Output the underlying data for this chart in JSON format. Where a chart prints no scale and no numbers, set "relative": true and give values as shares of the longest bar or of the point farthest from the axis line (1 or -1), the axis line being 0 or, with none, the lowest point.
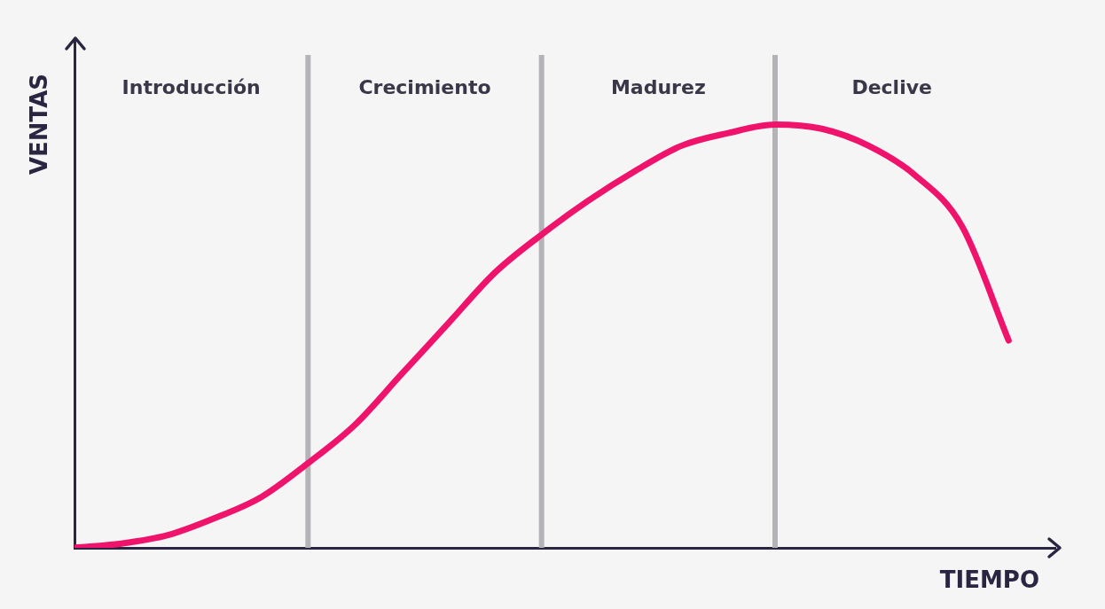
{
  "chart_data": {
    "type": "line",
    "xlabel": "TIEMPO",
    "ylabel": "VENTAS",
    "relative": true,
    "tick_labels": false,
    "grid": "x",
    "legend": false,
    "marker": "none",
    "line_style": "solid",
    "annotations": [
      "Introducción",
      "Crecimiento",
      "Madurez",
      "Declive"
    ],
    "categories": [
      null,
      null,
      null,
      null,
      null,
      null,
      null,
      null,
      null,
      null,
      null,
      null,
      null,
      null,
      null,
      null,
      null,
      null,
      null,
      null,
      null
    ],
    "series": [
      {
        "color": "#f0136b",
        "values": [
          0,
          0.01,
          0.03,
          0.07,
          0.12,
          0.2,
          0.29,
          0.41,
          0.53,
          0.65,
          0.74,
          0.82,
          0.89,
          0.95,
          0.98,
          1,
          0.99,
          0.95,
          0.88,
          0.76,
          0.49
        ]
      }
    ]
  }
}
